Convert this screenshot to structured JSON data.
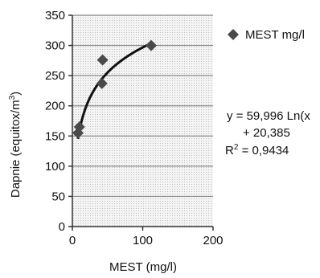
{
  "chart_data": {
    "type": "scatter",
    "title": "",
    "xlabel": "MEST (mg/l)",
    "ylabel": "Dapnie (equitox/m",
    "ylabel_superscript": "3",
    "ylabel_close": ")",
    "xlim": [
      0,
      200
    ],
    "ylim": [
      0,
      350
    ],
    "x_ticks": [
      0,
      100,
      200
    ],
    "y_ticks": [
      0,
      50,
      100,
      150,
      200,
      250,
      300,
      350
    ],
    "grid": true,
    "legend_placement": "top-right",
    "series": [
      {
        "name": "MEST mg/l",
        "marker": "diamond",
        "color": "#4a4a4a",
        "points": [
          {
            "x": 8,
            "y": 155
          },
          {
            "x": 10,
            "y": 165
          },
          {
            "x": 42,
            "y": 237
          },
          {
            "x": 43,
            "y": 276
          },
          {
            "x": 112,
            "y": 300
          }
        ]
      }
    ],
    "trendline": {
      "type": "logarithmic",
      "a": 59.996,
      "b": 20.385,
      "x_range": [
        8,
        112
      ],
      "equation_lines": [
        "y = 59,996 Ln(x",
        "+ 20,385"
      ],
      "r2_prefix": "R",
      "r2_sup": "2",
      "r2_value": " = 0,9434"
    }
  },
  "colors": {
    "plot_background": "#f2f2f2",
    "grid": "#8a8a8a",
    "axis": "#333333",
    "trend": "#111111",
    "marker": "#4a4a4a"
  }
}
